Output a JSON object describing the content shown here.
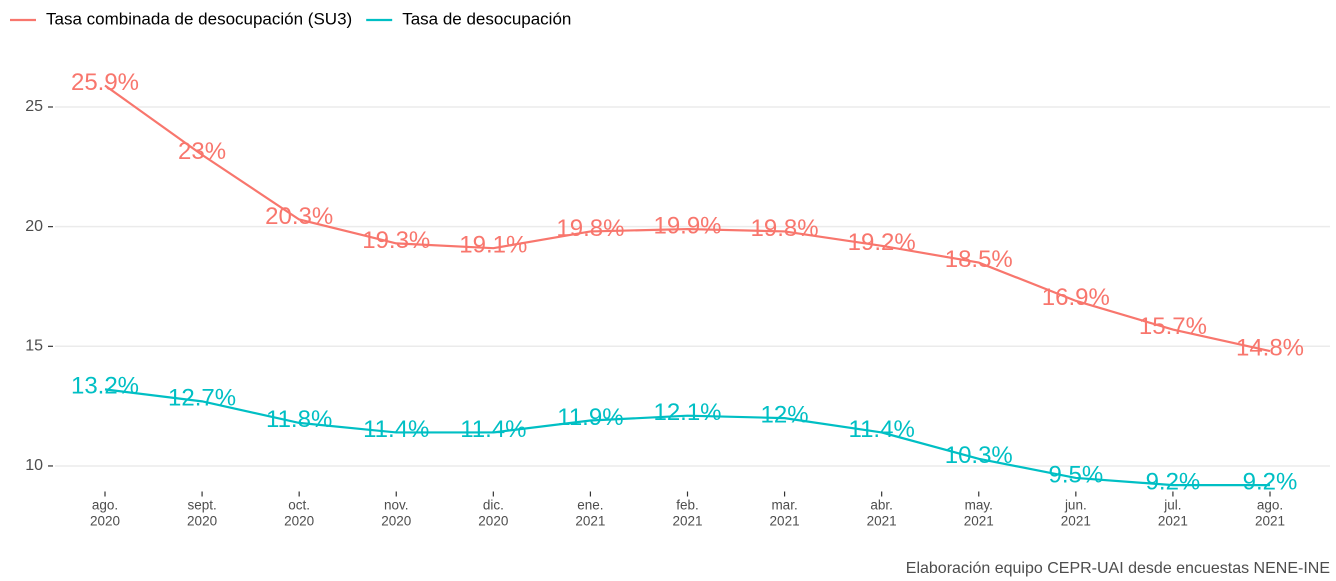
{
  "chart_data": {
    "type": "line",
    "categories": [
      "ago.\n2020",
      "sept.\n2020",
      "oct.\n2020",
      "nov.\n2020",
      "dic.\n2020",
      "ene.\n2021",
      "feb.\n2021",
      "mar.\n2021",
      "abr.\n2021",
      "may.\n2021",
      "jun.\n2021",
      "jul.\n2021",
      "ago.\n2021"
    ],
    "series": [
      {
        "name": "Tasa combinada de desocupación (SU3)",
        "color": "#F8766D",
        "values": [
          25.9,
          23,
          20.3,
          19.3,
          19.1,
          19.8,
          19.9,
          19.8,
          19.2,
          18.5,
          16.9,
          15.7,
          14.8
        ],
        "value_labels": [
          "25.9%",
          "23%",
          "20.3%",
          "19.3%",
          "19.1%",
          "19.8%",
          "19.9%",
          "19.8%",
          "19.2%",
          "18.5%",
          "16.9%",
          "15.7%",
          "14.8%"
        ]
      },
      {
        "name": "Tasa de desocupación",
        "color": "#00BFC4",
        "values": [
          13.2,
          12.7,
          11.8,
          11.4,
          11.4,
          11.9,
          12.1,
          12,
          11.4,
          10.3,
          9.5,
          9.2,
          9.2
        ],
        "value_labels": [
          "13.2%",
          "12.7%",
          "11.8%",
          "11.4%",
          "11.4%",
          "11.9%",
          "12.1%",
          "12%",
          "11.4%",
          "10.3%",
          "9.5%",
          "9.2%",
          "9.2%"
        ]
      }
    ],
    "ylim": [
      9.1,
      27.8
    ],
    "yticks": [
      10,
      15,
      20,
      25
    ],
    "grid": true,
    "legend": "top-left",
    "caption": "Elaboración equipo CEPR-UAI desde encuestas NENE-INE"
  }
}
